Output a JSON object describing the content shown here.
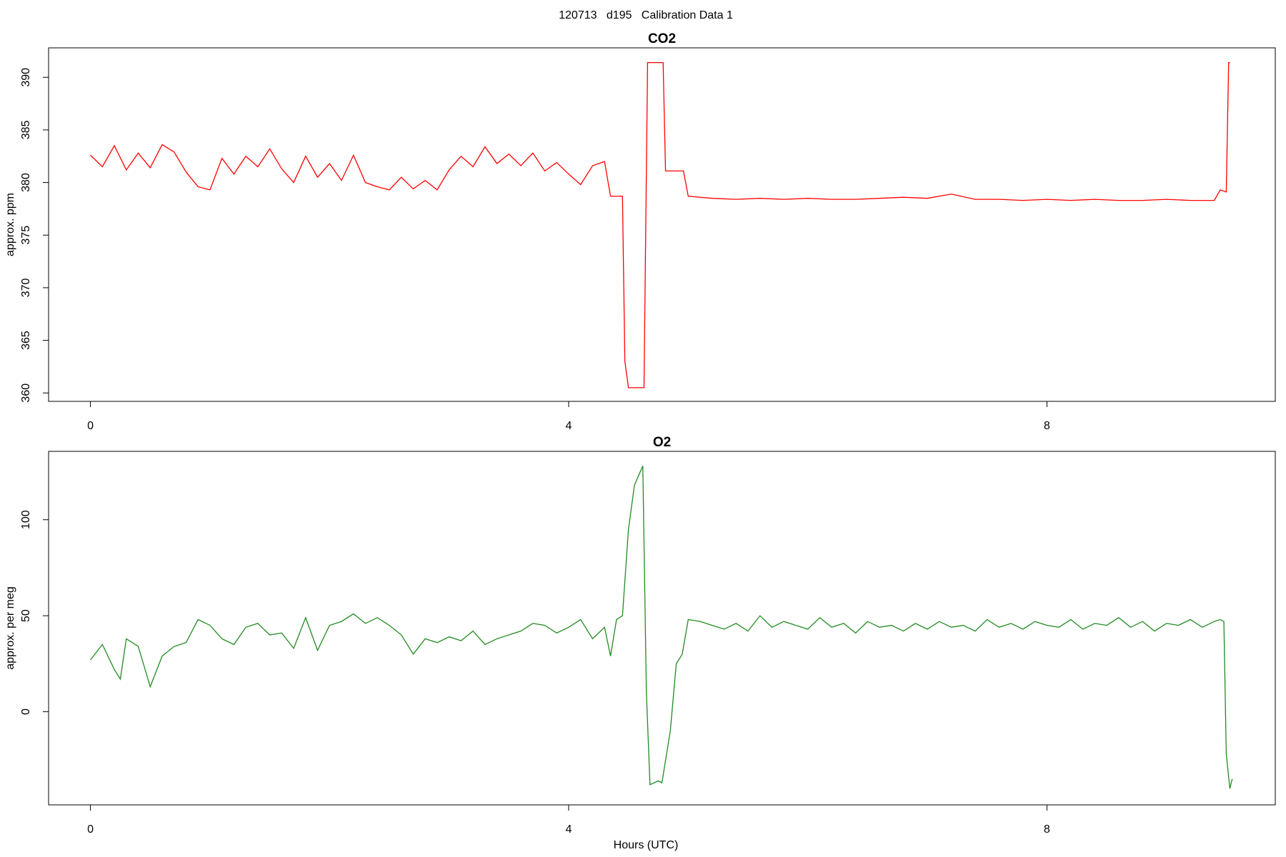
{
  "title": "120713   d195   Calibration Data 1",
  "x_label": "Hours (UTC)",
  "chart_data": [
    {
      "type": "line",
      "title": "CO2",
      "y_label": "approx. ppm",
      "color": "#ff0000",
      "xlim": [
        -0.35,
        9.91
      ],
      "xticks": [
        0,
        4,
        8
      ],
      "ylim": [
        359.2,
        392.8
      ],
      "yticks": [
        360,
        365,
        370,
        375,
        380,
        385,
        390
      ],
      "x": [
        0,
        0.1,
        0.2,
        0.3,
        0.4,
        0.5,
        0.6,
        0.7,
        0.8,
        0.9,
        1.0,
        1.1,
        1.2,
        1.3,
        1.4,
        1.5,
        1.6,
        1.7,
        1.8,
        1.9,
        2.0,
        2.1,
        2.2,
        2.3,
        2.4,
        2.5,
        2.6,
        2.7,
        2.8,
        2.9,
        3.0,
        3.1,
        3.2,
        3.3,
        3.4,
        3.5,
        3.6,
        3.7,
        3.8,
        3.9,
        4.0,
        4.1,
        4.2,
        4.3,
        4.35,
        4.45,
        4.47,
        4.5,
        4.63,
        4.66,
        4.79,
        4.81,
        4.96,
        5.0,
        5.2,
        5.4,
        5.6,
        5.8,
        6.0,
        6.2,
        6.4,
        6.6,
        6.8,
        7.0,
        7.2,
        7.4,
        7.6,
        7.8,
        8.0,
        8.2,
        8.4,
        8.6,
        8.8,
        9.0,
        9.2,
        9.4,
        9.45,
        9.5,
        9.52,
        9.53
      ],
      "values": [
        382.6,
        381.5,
        383.5,
        381.2,
        382.8,
        381.4,
        383.6,
        382.9,
        381.0,
        379.6,
        379.3,
        382.3,
        380.8,
        382.5,
        381.5,
        383.2,
        381.3,
        380.0,
        382.5,
        380.5,
        381.8,
        380.2,
        382.6,
        380.0,
        379.6,
        379.3,
        380.5,
        379.4,
        380.2,
        379.3,
        381.2,
        382.5,
        381.5,
        383.4,
        381.8,
        382.7,
        381.6,
        382.8,
        381.1,
        381.9,
        380.8,
        379.8,
        381.6,
        382.0,
        378.7,
        378.7,
        363.0,
        360.5,
        360.5,
        391.4,
        391.4,
        381.1,
        381.1,
        378.7,
        378.5,
        378.4,
        378.5,
        378.4,
        378.5,
        378.4,
        378.4,
        378.5,
        378.6,
        378.5,
        378.9,
        378.4,
        378.4,
        378.3,
        378.4,
        378.3,
        378.4,
        378.3,
        378.3,
        378.4,
        378.3,
        378.3,
        379.3,
        379.1,
        391.4,
        391.4
      ]
    },
    {
      "type": "line",
      "title": "O2",
      "y_label": "approx. per meg",
      "color": "#228b22",
      "xlim": [
        -0.35,
        9.91
      ],
      "xticks": [
        0,
        4,
        8
      ],
      "ylim": [
        -48.5,
        135.6
      ],
      "yticks": [
        0,
        50,
        100
      ],
      "x": [
        0,
        0.1,
        0.2,
        0.25,
        0.3,
        0.4,
        0.5,
        0.6,
        0.7,
        0.8,
        0.9,
        1.0,
        1.1,
        1.2,
        1.3,
        1.4,
        1.5,
        1.6,
        1.7,
        1.8,
        1.9,
        2.0,
        2.1,
        2.2,
        2.3,
        2.4,
        2.5,
        2.6,
        2.7,
        2.8,
        2.9,
        3.0,
        3.1,
        3.2,
        3.3,
        3.4,
        3.5,
        3.6,
        3.7,
        3.8,
        3.9,
        4.0,
        4.1,
        4.2,
        4.3,
        4.35,
        4.4,
        4.45,
        4.5,
        4.55,
        4.62,
        4.65,
        4.68,
        4.75,
        4.78,
        4.85,
        4.9,
        4.95,
        5.0,
        5.1,
        5.2,
        5.3,
        5.4,
        5.5,
        5.6,
        5.7,
        5.8,
        5.9,
        6.0,
        6.1,
        6.2,
        6.3,
        6.4,
        6.5,
        6.6,
        6.7,
        6.8,
        6.9,
        7.0,
        7.1,
        7.2,
        7.3,
        7.4,
        7.5,
        7.6,
        7.7,
        7.8,
        7.9,
        8.0,
        8.1,
        8.2,
        8.3,
        8.4,
        8.5,
        8.6,
        8.7,
        8.8,
        8.9,
        9.0,
        9.1,
        9.2,
        9.3,
        9.4,
        9.45,
        9.48,
        9.5,
        9.53,
        9.55
      ],
      "values": [
        27,
        35,
        22,
        17,
        38,
        34,
        13,
        29,
        34,
        36,
        48,
        45,
        38,
        35,
        44,
        46,
        40,
        41,
        33,
        49,
        32,
        45,
        47,
        51,
        46,
        49,
        45,
        40,
        30,
        38,
        36,
        39,
        37,
        42,
        35,
        38,
        40,
        42,
        46,
        45,
        41,
        44,
        48,
        38,
        44,
        29,
        48,
        50,
        95,
        118,
        128,
        10,
        -38,
        -36,
        -37,
        -10,
        25,
        30,
        48,
        47,
        45,
        43,
        46,
        42,
        50,
        44,
        47,
        45,
        43,
        49,
        44,
        46,
        41,
        47,
        44,
        45,
        42,
        46,
        43,
        47,
        44,
        45,
        42,
        48,
        44,
        46,
        43,
        47,
        45,
        44,
        48,
        43,
        46,
        45,
        49,
        44,
        47,
        42,
        46,
        45,
        48,
        44,
        47,
        48,
        47,
        -22,
        -40,
        -35
      ]
    }
  ]
}
